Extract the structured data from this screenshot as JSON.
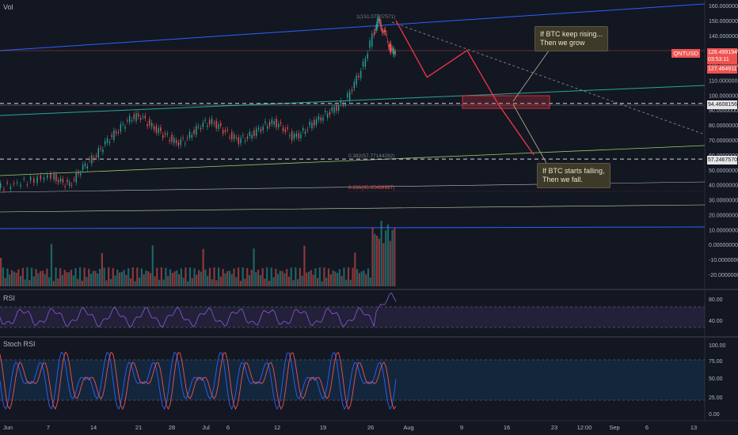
{
  "indicator_vol": "Vol",
  "indicator_rsi": "RSI",
  "indicator_stoch": "Stoch RSI",
  "fib_labels": {
    "top": "1(151.07707571)",
    "mid": "0.382(57.77144292)",
    "low": "0.236(35.65438987)"
  },
  "notes": {
    "rise": "If BTC keep rising...\nThen we grow",
    "fall": "If BTC starts falling,\nThen we fall."
  },
  "price_tags": {
    "symbol": "QNTUSD",
    "last": "128.49919454",
    "countdown": "03:53:11",
    "prev": "127.46491193",
    "line1": "94.46081565",
    "line2": "57.24675707"
  },
  "colors": {
    "bg": "#131722",
    "up": "#26a69a",
    "down": "#ef5350",
    "channel": "#2962ff",
    "teal": "#26a69a",
    "green_line": "#7cb342",
    "rsi": "#7e57c2",
    "stoch_k": "#2962ff",
    "stoch_d": "#ef5350",
    "projection": "#f23645"
  },
  "chart_data": {
    "type": "line",
    "symbol": "QNTUSD",
    "x_ticks": [
      "Jun",
      "7",
      "14",
      "21",
      "28",
      "Jul",
      "6",
      "12",
      "19",
      "26",
      "Aug",
      "9",
      "16",
      "23",
      "12:00",
      "Sep",
      "6",
      "13"
    ],
    "price_axis": [
      "160.00000000",
      "150.00000000",
      "140.00000000",
      "130.00000000",
      "120.00000000",
      "110.00000000",
      "100.00000000",
      "90.00000000",
      "80.00000000",
      "70.00000000",
      "60.00000000",
      "50.00000000",
      "40.00000000",
      "30.00000000",
      "20.00000000",
      "10.00000000",
      "0.00000000",
      "-10.00000000",
      "-20.00000000"
    ],
    "ylim": [
      -26,
      164
    ],
    "rsi_axis": [
      "80.00",
      "40.00"
    ],
    "stoch_axis": [
      "100.00",
      "75.00",
      "50.00",
      "25.00",
      "0.00"
    ],
    "price_path": [
      [
        0,
        38
      ],
      [
        3,
        40
      ],
      [
        6,
        42
      ],
      [
        9,
        44
      ],
      [
        12,
        46
      ],
      [
        14,
        42
      ],
      [
        16,
        40
      ],
      [
        18,
        48
      ],
      [
        20,
        55
      ],
      [
        22,
        60
      ],
      [
        24,
        68
      ],
      [
        26,
        74
      ],
      [
        28,
        80
      ],
      [
        30,
        85
      ],
      [
        32,
        86
      ],
      [
        34,
        80
      ],
      [
        36,
        76
      ],
      [
        38,
        72
      ],
      [
        40,
        68
      ],
      [
        42,
        70
      ],
      [
        44,
        76
      ],
      [
        46,
        81
      ],
      [
        48,
        82
      ],
      [
        50,
        78
      ],
      [
        52,
        73
      ],
      [
        54,
        70
      ],
      [
        56,
        72
      ],
      [
        58,
        76
      ],
      [
        60,
        80
      ],
      [
        62,
        82
      ],
      [
        64,
        78
      ],
      [
        66,
        72
      ],
      [
        68,
        74
      ],
      [
        70,
        80
      ],
      [
        72,
        84
      ],
      [
        74,
        88
      ],
      [
        76,
        92
      ],
      [
        78,
        96
      ],
      [
        80,
        108
      ],
      [
        82,
        120
      ],
      [
        84,
        140
      ],
      [
        85,
        150
      ],
      [
        86,
        145
      ],
      [
        87,
        138
      ],
      [
        88,
        130
      ],
      [
        89,
        128
      ]
    ],
    "projection": [
      [
        89,
        150
      ],
      [
        96,
        112
      ],
      [
        105,
        130
      ],
      [
        112,
        94
      ],
      [
        120,
        60
      ]
    ],
    "levels": [
      94.46,
      57.25
    ],
    "rsi_range": [
      30,
      75
    ],
    "stoch_band": [
      20,
      80
    ]
  }
}
